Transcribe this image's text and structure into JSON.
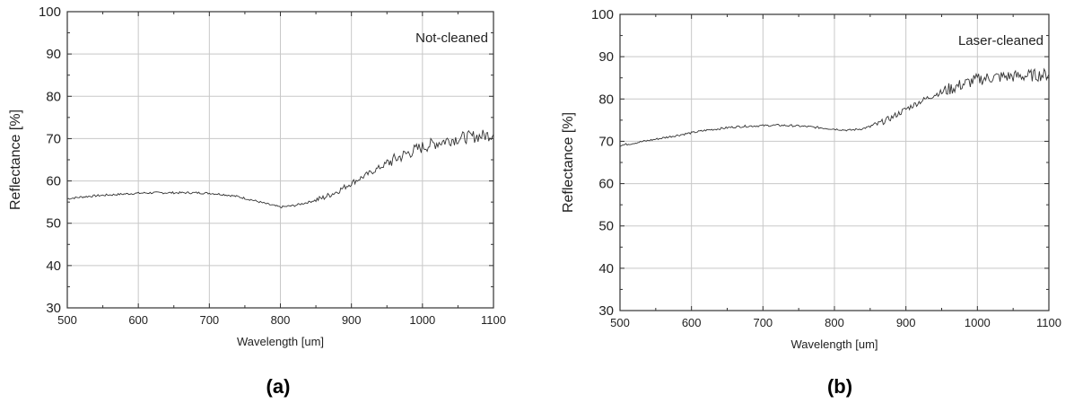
{
  "chart_data": [
    {
      "type": "line",
      "panel_label": "(a)",
      "annotation": "Not-cleaned",
      "xlabel": "Wavelength [um]",
      "ylabel": "Reflectance [%]",
      "xlim": [
        500,
        1100
      ],
      "ylim": [
        30,
        100
      ],
      "xticks": [
        500,
        600,
        700,
        800,
        900,
        1000,
        1100
      ],
      "yticks": [
        30,
        40,
        50,
        60,
        70,
        80,
        90,
        100
      ],
      "grid": true,
      "series": [
        {
          "color": "#333333",
          "x": [
            500,
            520,
            540,
            560,
            580,
            600,
            620,
            640,
            660,
            680,
            700,
            720,
            740,
            760,
            780,
            800,
            820,
            840,
            860,
            880,
            900,
            920,
            940,
            960,
            980,
            1000,
            1020,
            1040,
            1060,
            1080,
            1100
          ],
          "y": [
            55.8,
            56.2,
            56.5,
            56.7,
            56.9,
            57.1,
            57.2,
            57.2,
            57.2,
            57.2,
            57.1,
            56.8,
            56.3,
            55.5,
            54.6,
            53.8,
            54.2,
            55.0,
            56.0,
            57.5,
            59.5,
            61.3,
            63.2,
            65.0,
            66.6,
            68.0,
            69.0,
            69.8,
            70.3,
            70.6,
            71.0
          ]
        }
      ]
    },
    {
      "type": "line",
      "panel_label": "(b)",
      "annotation": "Laser-cleaned",
      "xlabel": "Wavelength [um]",
      "ylabel": "Reflectance [%]",
      "xlim": [
        500,
        1100
      ],
      "ylim": [
        30,
        100
      ],
      "xticks": [
        500,
        600,
        700,
        800,
        900,
        1000,
        1100
      ],
      "yticks": [
        30,
        40,
        50,
        60,
        70,
        80,
        90,
        100
      ],
      "grid": true,
      "series": [
        {
          "color": "#333333",
          "x": [
            500,
            520,
            540,
            560,
            580,
            600,
            620,
            640,
            660,
            680,
            700,
            720,
            740,
            760,
            780,
            800,
            820,
            840,
            860,
            880,
            900,
            920,
            940,
            960,
            980,
            1000,
            1020,
            1040,
            1060,
            1080,
            1100
          ],
          "y": [
            69.0,
            69.6,
            70.2,
            70.8,
            71.4,
            72.0,
            72.6,
            73.0,
            73.4,
            73.6,
            73.7,
            73.8,
            73.7,
            73.5,
            73.2,
            72.9,
            72.6,
            73.0,
            74.0,
            75.6,
            77.6,
            79.4,
            81.0,
            82.3,
            83.5,
            84.6,
            85.1,
            85.3,
            85.4,
            85.6,
            85.8
          ]
        }
      ]
    }
  ]
}
